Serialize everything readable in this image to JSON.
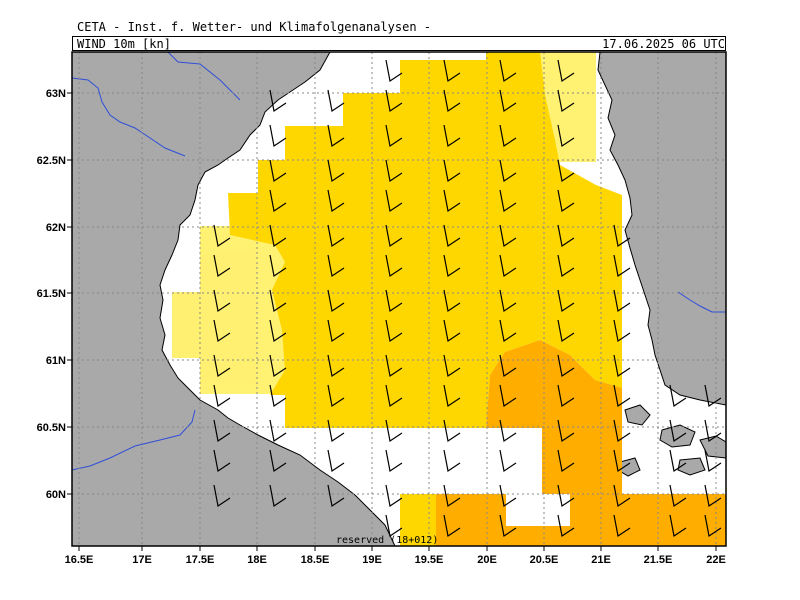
{
  "header": {
    "organization": "CETA - Inst. f. Wetter- und Klimafolgenanalysen -",
    "field": "WIND 10m [kn]",
    "valid_time": "17.06.2025 06 UTC"
  },
  "footer": {
    "reserved": "reserved (18+012)"
  },
  "map": {
    "lon_range": [
      16.5,
      22.0
    ],
    "lat_range": [
      59.6,
      63.3
    ],
    "lon_ticks": [
      "16.5E",
      "17E",
      "17.5E",
      "18E",
      "18.5E",
      "19E",
      "19.5E",
      "20E",
      "20.5E",
      "21E",
      "21.5E",
      "22E"
    ],
    "lat_ticks": [
      "63N",
      "62.5N",
      "62N",
      "61.5N",
      "61N",
      "60.5N",
      "60N"
    ],
    "grid": true,
    "colors": {
      "land": "#a9a9a9",
      "sea": "#ffffff",
      "border": "#2f4fd8",
      "wind_light": "#fff06a",
      "wind_medium": "#ffd700",
      "wind_strong": "#ffae00",
      "barb": "#000000"
    },
    "wind_barbs_direction": "northwest"
  }
}
